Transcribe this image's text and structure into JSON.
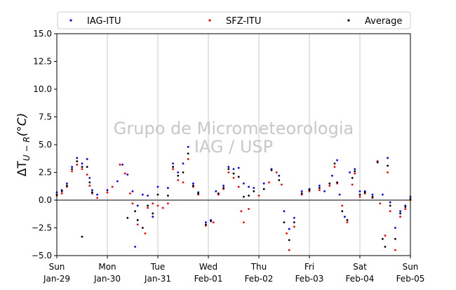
{
  "chart_data": {
    "type": "scatter",
    "title": "",
    "ylabel": "ΔT U−R (°C)",
    "ylabel_main": "ΔT",
    "ylabel_sub": "U − R",
    "ylabel_unit": "(°C)",
    "xlabel": "",
    "watermark_line1": "Grupo de Micrometeorologia",
    "watermark_line2": "IAG / USP",
    "xlim": [
      0,
      7
    ],
    "ylim": [
      -5,
      15
    ],
    "grid": "vertical-only",
    "legend_placement": "top",
    "reference_line_y": 0,
    "x_ticks": [
      {
        "x": 0,
        "day": "Sun",
        "date": "Jan-29"
      },
      {
        "x": 1,
        "day": "Mon",
        "date": "Jan-30"
      },
      {
        "x": 2,
        "day": "Tue",
        "date": "Jan-31"
      },
      {
        "x": 3,
        "day": "Wed",
        "date": "Feb-01"
      },
      {
        "x": 4,
        "day": "Thu",
        "date": "Feb-02"
      },
      {
        "x": 5,
        "day": "Fri",
        "date": "Feb-03"
      },
      {
        "x": 6,
        "day": "Sat",
        "date": "Feb-04"
      },
      {
        "x": 7,
        "day": "Sun",
        "date": "Feb-05"
      }
    ],
    "y_ticks": [
      "−5.0",
      "−2.5",
      "0.0",
      "2.5",
      "5.0",
      "7.5",
      "10.0",
      "12.5",
      "15.0"
    ],
    "y_tick_values": [
      -5,
      -2.5,
      0,
      2.5,
      5,
      7.5,
      10,
      12.5,
      15
    ],
    "series": [
      {
        "name": "IAG-ITU",
        "color": "#0000ff",
        "marker": "dot",
        "points": [
          [
            0,
            0.7
          ],
          [
            0.1,
            0.9
          ],
          [
            0.2,
            1.5
          ],
          [
            0.3,
            3.0
          ],
          [
            0.4,
            3.8
          ],
          [
            0.5,
            3.3
          ],
          [
            0.6,
            3.7
          ],
          [
            0.65,
            2.0
          ],
          [
            0.7,
            0.9
          ],
          [
            0.8,
            0.5
          ],
          [
            1.0,
            0.9
          ],
          [
            1.2,
            1.7
          ],
          [
            1.3,
            3.2
          ],
          [
            1.4,
            2.3
          ],
          [
            1.5,
            0.8
          ],
          [
            1.55,
            -4.2
          ],
          [
            1.6,
            -0.5
          ],
          [
            1.7,
            0.5
          ],
          [
            1.8,
            0.4
          ],
          [
            1.9,
            -1.5
          ],
          [
            2.0,
            1.2
          ],
          [
            2.2,
            1.1
          ],
          [
            2.3,
            3.3
          ],
          [
            2.4,
            2.5
          ],
          [
            2.5,
            3.3
          ],
          [
            2.6,
            4.8
          ],
          [
            2.7,
            1.5
          ],
          [
            2.8,
            0.7
          ],
          [
            2.95,
            -2.0
          ],
          [
            3.05,
            -1.8
          ],
          [
            3.15,
            0.8
          ],
          [
            3.3,
            1.3
          ],
          [
            3.4,
            3.0
          ],
          [
            3.5,
            2.8
          ],
          [
            3.6,
            2.9
          ],
          [
            3.7,
            1.5
          ],
          [
            3.8,
            1.2
          ],
          [
            3.9,
            1.1
          ],
          [
            4.1,
            1.5
          ],
          [
            4.25,
            2.8
          ],
          [
            4.4,
            2.2
          ],
          [
            4.5,
            -1.0
          ],
          [
            4.6,
            -2.6
          ],
          [
            4.7,
            -1.6
          ],
          [
            4.85,
            0.8
          ],
          [
            5.0,
            1.0
          ],
          [
            5.2,
            1.3
          ],
          [
            5.3,
            0.8
          ],
          [
            5.45,
            2.2
          ],
          [
            5.55,
            3.6
          ],
          [
            5.6,
            0.5
          ],
          [
            5.7,
            -1.5
          ],
          [
            5.8,
            2.5
          ],
          [
            5.9,
            2.8
          ],
          [
            6.0,
            0.8
          ],
          [
            6.1,
            0.8
          ],
          [
            6.25,
            0.5
          ],
          [
            6.35,
            3.5
          ],
          [
            6.45,
            0.5
          ],
          [
            6.55,
            3.8
          ],
          [
            6.6,
            -0.2
          ],
          [
            6.7,
            -2.5
          ],
          [
            6.8,
            -1.0
          ],
          [
            6.9,
            -0.5
          ],
          [
            7.0,
            0.3
          ]
        ]
      },
      {
        "name": "SFZ-ITU",
        "color": "#ff0000",
        "marker": "dot",
        "points": [
          [
            0,
            0.4
          ],
          [
            0.1,
            0.6
          ],
          [
            0.2,
            1.2
          ],
          [
            0.3,
            2.6
          ],
          [
            0.4,
            3.2
          ],
          [
            0.5,
            2.8
          ],
          [
            0.6,
            2.3
          ],
          [
            0.65,
            1.3
          ],
          [
            0.7,
            0.6
          ],
          [
            0.8,
            0.2
          ],
          [
            1.0,
            0.7
          ],
          [
            1.1,
            1.2
          ],
          [
            1.25,
            3.2
          ],
          [
            1.35,
            2.4
          ],
          [
            1.45,
            0.6
          ],
          [
            1.5,
            -0.3
          ],
          [
            1.6,
            -2.2
          ],
          [
            1.75,
            -3.0
          ],
          [
            1.8,
            -0.7
          ],
          [
            1.9,
            -0.3
          ],
          [
            2.0,
            -0.5
          ],
          [
            2.1,
            -0.7
          ],
          [
            2.2,
            -0.3
          ],
          [
            2.3,
            2.8
          ],
          [
            2.4,
            1.8
          ],
          [
            2.5,
            1.6
          ],
          [
            2.6,
            3.7
          ],
          [
            2.7,
            1.2
          ],
          [
            2.8,
            0.5
          ],
          [
            2.95,
            -2.3
          ],
          [
            3.1,
            -2.0
          ],
          [
            3.2,
            0.5
          ],
          [
            3.3,
            1.0
          ],
          [
            3.4,
            2.5
          ],
          [
            3.5,
            2.0
          ],
          [
            3.6,
            1.2
          ],
          [
            3.65,
            -1.0
          ],
          [
            3.7,
            -2.0
          ],
          [
            3.8,
            -0.8
          ],
          [
            4.0,
            0.4
          ],
          [
            4.2,
            1.6
          ],
          [
            4.35,
            2.5
          ],
          [
            4.45,
            1.4
          ],
          [
            4.55,
            -3.0
          ],
          [
            4.6,
            -4.5
          ],
          [
            4.7,
            -2.4
          ],
          [
            4.85,
            0.5
          ],
          [
            5.0,
            0.8
          ],
          [
            5.2,
            0.9
          ],
          [
            5.4,
            1.3
          ],
          [
            5.5,
            3.0
          ],
          [
            5.55,
            1.5
          ],
          [
            5.65,
            -0.5
          ],
          [
            5.75,
            -2.0
          ],
          [
            5.85,
            1.4
          ],
          [
            5.9,
            2.4
          ],
          [
            6.0,
            0.3
          ],
          [
            6.1,
            0.6
          ],
          [
            6.25,
            0.2
          ],
          [
            6.35,
            3.5
          ],
          [
            6.4,
            -0.3
          ],
          [
            6.5,
            -3.2
          ],
          [
            6.55,
            2.5
          ],
          [
            6.6,
            -1.0
          ],
          [
            6.7,
            -4.5
          ],
          [
            6.8,
            -1.5
          ],
          [
            6.9,
            -0.8
          ],
          [
            7.0,
            0.0
          ]
        ]
      },
      {
        "name": "Average",
        "color": "#000000",
        "marker": "dot",
        "points": [
          [
            0,
            0.5
          ],
          [
            0.1,
            0.8
          ],
          [
            0.2,
            1.3
          ],
          [
            0.3,
            2.8
          ],
          [
            0.4,
            3.5
          ],
          [
            0.5,
            3.0
          ],
          [
            0.5,
            -3.3
          ],
          [
            0.6,
            3.0
          ],
          [
            0.65,
            1.6
          ],
          [
            0.7,
            0.7
          ],
          [
            1.4,
            -1.6
          ],
          [
            1.55,
            -1.0
          ],
          [
            1.6,
            -1.8
          ],
          [
            1.7,
            -2.5
          ],
          [
            1.8,
            -0.5
          ],
          [
            1.9,
            -1.2
          ],
          [
            2.0,
            0.5
          ],
          [
            2.2,
            0.4
          ],
          [
            2.3,
            3.0
          ],
          [
            2.4,
            2.2
          ],
          [
            2.5,
            2.5
          ],
          [
            2.6,
            4.2
          ],
          [
            2.7,
            1.3
          ],
          [
            2.8,
            0.6
          ],
          [
            2.95,
            -2.2
          ],
          [
            3.05,
            -1.9
          ],
          [
            3.2,
            0.6
          ],
          [
            3.3,
            1.1
          ],
          [
            3.4,
            2.8
          ],
          [
            3.5,
            2.4
          ],
          [
            3.6,
            2.1
          ],
          [
            3.7,
            0.3
          ],
          [
            3.8,
            0.4
          ],
          [
            3.9,
            0.8
          ],
          [
            4.1,
            1.0
          ],
          [
            4.25,
            2.7
          ],
          [
            4.4,
            1.8
          ],
          [
            4.5,
            -2.0
          ],
          [
            4.6,
            -3.6
          ],
          [
            4.7,
            -2.0
          ],
          [
            4.85,
            0.6
          ],
          [
            5.0,
            0.9
          ],
          [
            5.2,
            1.1
          ],
          [
            5.4,
            1.5
          ],
          [
            5.5,
            3.3
          ],
          [
            5.55,
            1.6
          ],
          [
            5.65,
            -1.0
          ],
          [
            5.75,
            -1.8
          ],
          [
            5.85,
            2.0
          ],
          [
            5.9,
            2.6
          ],
          [
            6.0,
            0.5
          ],
          [
            6.1,
            0.7
          ],
          [
            6.25,
            0.3
          ],
          [
            6.35,
            3.4
          ],
          [
            6.45,
            -3.5
          ],
          [
            6.5,
            -4.2
          ],
          [
            6.55,
            3.1
          ],
          [
            6.6,
            -0.5
          ],
          [
            6.7,
            -3.5
          ],
          [
            6.8,
            -1.2
          ],
          [
            6.9,
            -0.6
          ],
          [
            7.0,
            0.1
          ]
        ]
      }
    ]
  }
}
